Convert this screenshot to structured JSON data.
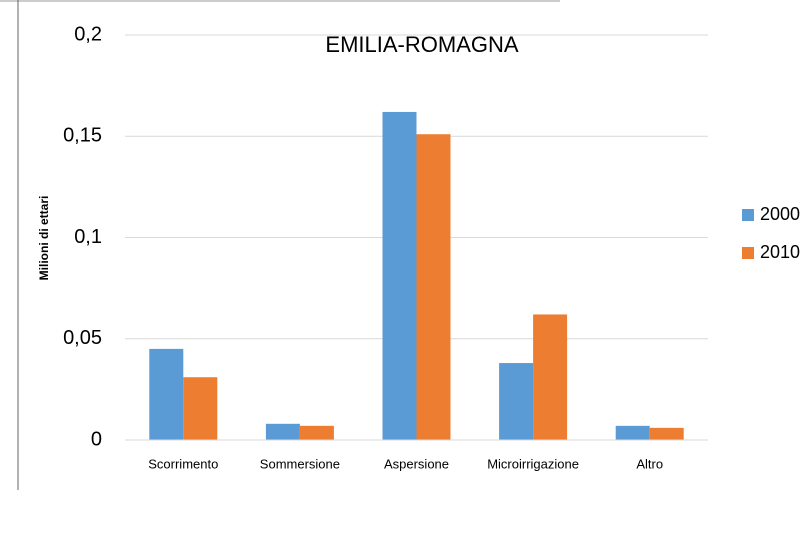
{
  "chart_data": {
    "type": "bar",
    "title": "EMILIA-ROMAGNA",
    "y_label": "Milioni di ettari",
    "categories": [
      "Scorrimento",
      "Sommersione",
      "Aspersione",
      "Microirrigazione",
      "Altro"
    ],
    "series": [
      {
        "name": "2000",
        "color": "#5b9bd5",
        "values": [
          0.045,
          0.008,
          0.162,
          0.038,
          0.007
        ]
      },
      {
        "name": "2010",
        "color": "#ed7d31",
        "values": [
          0.031,
          0.007,
          0.151,
          0.062,
          0.006
        ]
      }
    ],
    "ylim": [
      0,
      0.2
    ],
    "yticks": [
      0,
      {
        "value": 0.05,
        "label": "0,05"
      },
      {
        "value": 0.1,
        "label": "0,1"
      },
      {
        "value": 0.15,
        "label": "0,15"
      },
      {
        "value": 0.2,
        "label": "0,2"
      }
    ],
    "grid": true,
    "legend": "right"
  }
}
